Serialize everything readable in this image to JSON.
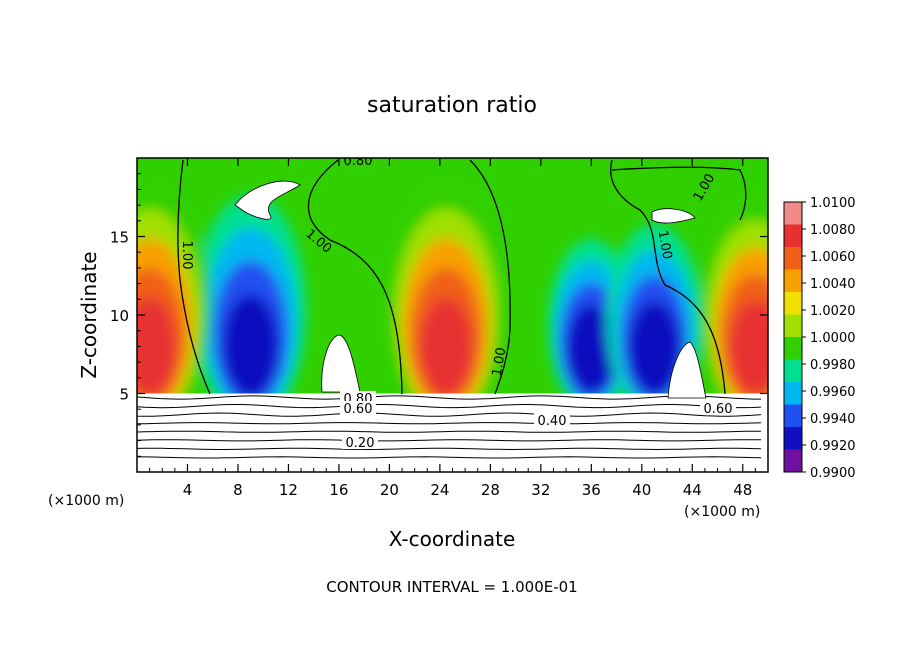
{
  "chart_data": {
    "type": "heatmap",
    "title": "saturation ratio",
    "xlabel": "X-coordinate",
    "ylabel": "Z-coordinate",
    "x_unit_label": "(×1000 m)",
    "footer": "CONTOUR INTERVAL = 1.000E-01",
    "xlim": [
      0,
      50
    ],
    "ylim": [
      0,
      20
    ],
    "xticks": [
      4,
      8,
      12,
      16,
      20,
      24,
      28,
      32,
      36,
      40,
      44,
      48
    ],
    "yticks": [
      5,
      10,
      15
    ],
    "colorbar": {
      "min": 0.99,
      "max": 1.01,
      "tick_labels": [
        "1.0100",
        "1.0080",
        "1.0060",
        "1.0040",
        "1.0020",
        "1.0000",
        "0.9980",
        "0.9960",
        "0.9940",
        "0.9920",
        "0.9900"
      ],
      "colors": [
        "#f28a8a",
        "#e83030",
        "#f06018",
        "#f8a000",
        "#f0e000",
        "#a0e000",
        "#30d000",
        "#00e090",
        "#00b8f0",
        "#2050f0",
        "#1010c0",
        "#7010a0"
      ]
    },
    "cloud_base_z": 5,
    "dry_layer_contours": [
      0.2,
      0.4,
      0.6,
      0.8
    ],
    "contour_labels": [
      "0.80",
      "1.00",
      "1.00",
      "1.00",
      "1.00",
      "1.00",
      "0.80",
      "0.60",
      "0.40",
      "0.60",
      "0.20"
    ],
    "features": [
      {
        "kind": "downdraft",
        "x": 9,
        "sign": -1,
        "strength": 0.9
      },
      {
        "kind": "updraft",
        "x": 1,
        "sign": 1,
        "strength": 1.0
      },
      {
        "kind": "updraft",
        "x": 24.5,
        "sign": 1,
        "strength": 1.0
      },
      {
        "kind": "downdraft",
        "x": 36,
        "sign": -1,
        "strength": 0.6
      },
      {
        "kind": "downdraft",
        "x": 41,
        "sign": -1,
        "strength": 0.7
      },
      {
        "kind": "updraft",
        "x": 49,
        "sign": 1,
        "strength": 0.9
      }
    ]
  },
  "colors": {
    "axis": "#000000",
    "background_field": "#30d000"
  }
}
